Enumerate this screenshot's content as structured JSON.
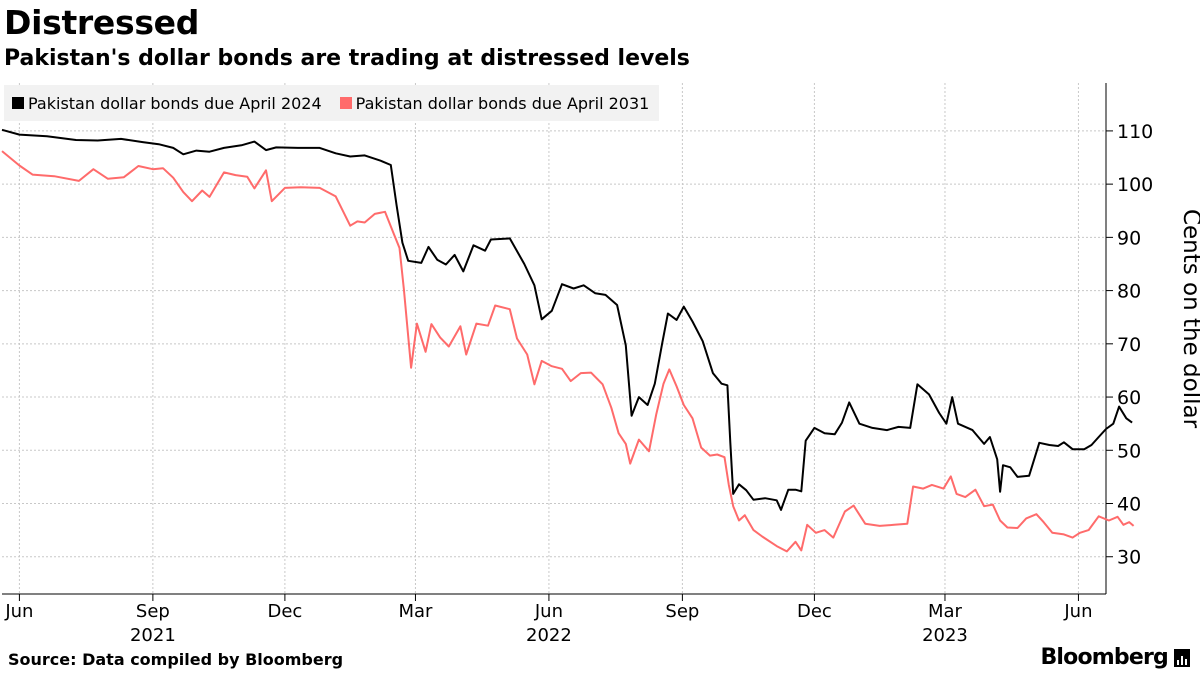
{
  "header": {
    "title": "Distressed",
    "subtitle": "Pakistan's dollar bonds are trading at distressed levels"
  },
  "footer": {
    "source": "Source: Data compiled by Bloomberg",
    "brand": "Bloomberg"
  },
  "colors": {
    "series_2024": "#000000",
    "series_2031": "#ff6b6b",
    "grid": "#c8c8c8",
    "legend_bg": "#f2f2f2"
  },
  "chart_data": {
    "type": "line",
    "title": "Distressed",
    "subtitle": "Pakistan's dollar bonds are trading at distressed levels",
    "ylabel": "Cents on the dollar",
    "ylim": [
      23,
      119
    ],
    "yticks": [
      30,
      40,
      50,
      60,
      70,
      80,
      90,
      100,
      110
    ],
    "xlim": [
      "2021-05-20",
      "2023-06-20"
    ],
    "xticks": [
      {
        "date": "2021-06-01",
        "label": "Jun",
        "year": ""
      },
      {
        "date": "2021-09-01",
        "label": "Sep",
        "year": "2021"
      },
      {
        "date": "2021-12-01",
        "label": "Dec",
        "year": ""
      },
      {
        "date": "2022-03-01",
        "label": "Mar",
        "year": ""
      },
      {
        "date": "2022-06-01",
        "label": "Jun",
        "year": "2022"
      },
      {
        "date": "2022-09-01",
        "label": "Sep",
        "year": ""
      },
      {
        "date": "2022-12-01",
        "label": "Dec",
        "year": ""
      },
      {
        "date": "2023-03-01",
        "label": "Mar",
        "year": "2023"
      },
      {
        "date": "2023-06-01",
        "label": "Jun",
        "year": ""
      }
    ],
    "legend_position": "top-left",
    "series": [
      {
        "name": "Pakistan dollar bonds due April 2024",
        "color": "#000000",
        "points": [
          [
            "2021-05-20",
            110.2
          ],
          [
            "2021-06-01",
            109.3
          ],
          [
            "2021-06-20",
            109.0
          ],
          [
            "2021-07-10",
            108.3
          ],
          [
            "2021-07-25",
            108.2
          ],
          [
            "2021-08-10",
            108.5
          ],
          [
            "2021-08-25",
            107.9
          ],
          [
            "2021-09-05",
            107.5
          ],
          [
            "2021-09-15",
            106.8
          ],
          [
            "2021-09-22",
            105.6
          ],
          [
            "2021-10-01",
            106.3
          ],
          [
            "2021-10-10",
            106.1
          ],
          [
            "2021-10-20",
            106.8
          ],
          [
            "2021-11-01",
            107.3
          ],
          [
            "2021-11-10",
            108.0
          ],
          [
            "2021-11-18",
            106.4
          ],
          [
            "2021-11-25",
            106.9
          ],
          [
            "2021-12-10",
            106.8
          ],
          [
            "2021-12-25",
            106.8
          ],
          [
            "2022-01-05",
            105.8
          ],
          [
            "2022-01-15",
            105.2
          ],
          [
            "2022-01-25",
            105.4
          ],
          [
            "2022-02-05",
            104.4
          ],
          [
            "2022-02-12",
            103.6
          ],
          [
            "2022-02-16",
            96.0
          ],
          [
            "2022-02-20",
            89.0
          ],
          [
            "2022-02-24",
            85.6
          ],
          [
            "2022-03-05",
            85.2
          ],
          [
            "2022-03-10",
            88.2
          ],
          [
            "2022-03-16",
            85.8
          ],
          [
            "2022-03-22",
            84.9
          ],
          [
            "2022-03-28",
            86.7
          ],
          [
            "2022-04-03",
            83.6
          ],
          [
            "2022-04-10",
            88.5
          ],
          [
            "2022-04-18",
            87.5
          ],
          [
            "2022-04-22",
            89.6
          ],
          [
            "2022-05-05",
            89.8
          ],
          [
            "2022-05-15",
            85.0
          ],
          [
            "2022-05-22",
            81.0
          ],
          [
            "2022-05-27",
            74.6
          ],
          [
            "2022-06-03",
            76.2
          ],
          [
            "2022-06-10",
            81.2
          ],
          [
            "2022-06-18",
            80.4
          ],
          [
            "2022-06-25",
            81.0
          ],
          [
            "2022-07-03",
            79.5
          ],
          [
            "2022-07-10",
            79.2
          ],
          [
            "2022-07-18",
            77.3
          ],
          [
            "2022-07-24",
            69.7
          ],
          [
            "2022-07-28",
            56.5
          ],
          [
            "2022-08-02",
            60.0
          ],
          [
            "2022-08-08",
            58.5
          ],
          [
            "2022-08-13",
            62.5
          ],
          [
            "2022-08-18",
            70.0
          ],
          [
            "2022-08-22",
            75.7
          ],
          [
            "2022-08-28",
            74.5
          ],
          [
            "2022-09-02",
            77.0
          ],
          [
            "2022-09-08",
            74.2
          ],
          [
            "2022-09-15",
            70.5
          ],
          [
            "2022-09-22",
            64.5
          ],
          [
            "2022-09-28",
            62.5
          ],
          [
            "2022-10-02",
            62.2
          ],
          [
            "2022-10-04",
            51.5
          ],
          [
            "2022-10-06",
            41.8
          ],
          [
            "2022-10-10",
            43.6
          ],
          [
            "2022-10-15",
            42.5
          ],
          [
            "2022-10-20",
            40.7
          ],
          [
            "2022-10-28",
            41.0
          ],
          [
            "2022-11-05",
            40.6
          ],
          [
            "2022-11-08",
            38.8
          ],
          [
            "2022-11-13",
            42.6
          ],
          [
            "2022-11-18",
            42.6
          ],
          [
            "2022-11-22",
            42.3
          ],
          [
            "2022-11-25",
            51.8
          ],
          [
            "2022-12-01",
            54.2
          ],
          [
            "2022-12-08",
            53.2
          ],
          [
            "2022-12-15",
            53.0
          ],
          [
            "2022-12-20",
            55.2
          ],
          [
            "2022-12-25",
            59.0
          ],
          [
            "2023-01-01",
            55.0
          ],
          [
            "2023-01-10",
            54.2
          ],
          [
            "2023-01-20",
            53.8
          ],
          [
            "2023-01-28",
            54.4
          ],
          [
            "2023-02-05",
            54.2
          ],
          [
            "2023-02-10",
            62.4
          ],
          [
            "2023-02-18",
            60.5
          ],
          [
            "2023-02-25",
            57.0
          ],
          [
            "2023-03-02",
            55.0
          ],
          [
            "2023-03-06",
            60.0
          ],
          [
            "2023-03-10",
            55.0
          ],
          [
            "2023-03-20",
            53.8
          ],
          [
            "2023-03-28",
            51.2
          ],
          [
            "2023-04-01",
            52.5
          ],
          [
            "2023-04-06",
            48.3
          ],
          [
            "2023-04-08",
            42.2
          ],
          [
            "2023-04-10",
            47.2
          ],
          [
            "2023-04-15",
            46.8
          ],
          [
            "2023-04-20",
            45.0
          ],
          [
            "2023-04-28",
            45.2
          ],
          [
            "2023-05-05",
            51.4
          ],
          [
            "2023-05-12",
            51.0
          ],
          [
            "2023-05-18",
            50.8
          ],
          [
            "2023-05-22",
            51.5
          ],
          [
            "2023-05-28",
            50.2
          ],
          [
            "2023-06-05",
            50.2
          ],
          [
            "2023-06-10",
            51.0
          ],
          [
            "2023-06-15",
            52.5
          ],
          [
            "2023-06-20",
            54.0
          ],
          [
            "2023-06-25",
            55.0
          ],
          [
            "2023-06-29",
            58.2
          ],
          [
            "2023-07-04",
            56.0
          ],
          [
            "2023-07-08",
            55.2
          ]
        ]
      },
      {
        "name": "Pakistan dollar bonds due April 2031",
        "color": "#ff6b6b",
        "points": [
          [
            "2021-05-20",
            106.2
          ],
          [
            "2021-06-01",
            103.5
          ],
          [
            "2021-06-10",
            101.8
          ],
          [
            "2021-06-25",
            101.5
          ],
          [
            "2021-07-12",
            100.6
          ],
          [
            "2021-07-22",
            102.8
          ],
          [
            "2021-08-01",
            101.0
          ],
          [
            "2021-08-12",
            101.3
          ],
          [
            "2021-08-22",
            103.4
          ],
          [
            "2021-09-01",
            102.8
          ],
          [
            "2021-09-08",
            103.0
          ],
          [
            "2021-09-15",
            101.2
          ],
          [
            "2021-09-22",
            98.5
          ],
          [
            "2021-09-28",
            96.8
          ],
          [
            "2021-10-05",
            98.8
          ],
          [
            "2021-10-10",
            97.6
          ],
          [
            "2021-10-20",
            102.2
          ],
          [
            "2021-10-28",
            101.7
          ],
          [
            "2021-11-05",
            101.4
          ],
          [
            "2021-11-10",
            99.2
          ],
          [
            "2021-11-18",
            102.6
          ],
          [
            "2021-11-22",
            96.8
          ],
          [
            "2021-12-01",
            99.3
          ],
          [
            "2021-12-12",
            99.4
          ],
          [
            "2021-12-25",
            99.3
          ],
          [
            "2022-01-05",
            97.7
          ],
          [
            "2022-01-15",
            92.2
          ],
          [
            "2022-01-20",
            93.0
          ],
          [
            "2022-01-25",
            92.8
          ],
          [
            "2022-02-01",
            94.4
          ],
          [
            "2022-02-08",
            94.8
          ],
          [
            "2022-02-14",
            90.7
          ],
          [
            "2022-02-18",
            88.0
          ],
          [
            "2022-02-21",
            80.2
          ],
          [
            "2022-02-26",
            65.5
          ],
          [
            "2022-03-02",
            73.8
          ],
          [
            "2022-03-08",
            68.5
          ],
          [
            "2022-03-12",
            73.7
          ],
          [
            "2022-03-18",
            71.2
          ],
          [
            "2022-03-24",
            69.5
          ],
          [
            "2022-04-01",
            73.3
          ],
          [
            "2022-04-05",
            68.0
          ],
          [
            "2022-04-12",
            73.8
          ],
          [
            "2022-04-20",
            73.4
          ],
          [
            "2022-04-25",
            77.2
          ],
          [
            "2022-05-05",
            76.5
          ],
          [
            "2022-05-10",
            71.0
          ],
          [
            "2022-05-17",
            68.0
          ],
          [
            "2022-05-22",
            62.4
          ],
          [
            "2022-05-27",
            66.8
          ],
          [
            "2022-06-03",
            65.8
          ],
          [
            "2022-06-10",
            65.3
          ],
          [
            "2022-06-16",
            63.0
          ],
          [
            "2022-06-23",
            64.5
          ],
          [
            "2022-06-30",
            64.6
          ],
          [
            "2022-07-08",
            62.4
          ],
          [
            "2022-07-14",
            58.0
          ],
          [
            "2022-07-19",
            53.2
          ],
          [
            "2022-07-24",
            51.2
          ],
          [
            "2022-07-27",
            47.5
          ],
          [
            "2022-08-02",
            52.0
          ],
          [
            "2022-08-09",
            49.8
          ],
          [
            "2022-08-14",
            56.8
          ],
          [
            "2022-08-19",
            62.5
          ],
          [
            "2022-08-23",
            65.2
          ],
          [
            "2022-08-28",
            62.0
          ],
          [
            "2022-09-02",
            58.5
          ],
          [
            "2022-09-08",
            56.0
          ],
          [
            "2022-09-14",
            50.5
          ],
          [
            "2022-09-20",
            49.0
          ],
          [
            "2022-09-25",
            49.2
          ],
          [
            "2022-09-30",
            48.7
          ],
          [
            "2022-10-03",
            43.5
          ],
          [
            "2022-10-06",
            39.5
          ],
          [
            "2022-10-10",
            36.8
          ],
          [
            "2022-10-14",
            37.8
          ],
          [
            "2022-10-20",
            35.0
          ],
          [
            "2022-10-26",
            33.8
          ],
          [
            "2022-11-05",
            32.0
          ],
          [
            "2022-11-12",
            31.0
          ],
          [
            "2022-11-18",
            32.8
          ],
          [
            "2022-11-22",
            31.2
          ],
          [
            "2022-11-26",
            36.0
          ],
          [
            "2022-12-02",
            34.5
          ],
          [
            "2022-12-08",
            35.0
          ],
          [
            "2022-12-14",
            33.6
          ],
          [
            "2022-12-22",
            38.5
          ],
          [
            "2022-12-28",
            39.6
          ],
          [
            "2023-01-05",
            36.2
          ],
          [
            "2023-01-15",
            35.8
          ],
          [
            "2023-01-25",
            36.0
          ],
          [
            "2023-02-03",
            36.2
          ],
          [
            "2023-02-07",
            43.2
          ],
          [
            "2023-02-14",
            42.8
          ],
          [
            "2023-02-20",
            43.5
          ],
          [
            "2023-02-28",
            42.8
          ],
          [
            "2023-03-05",
            45.1
          ],
          [
            "2023-03-09",
            41.8
          ],
          [
            "2023-03-15",
            41.2
          ],
          [
            "2023-03-22",
            42.6
          ],
          [
            "2023-03-28",
            39.5
          ],
          [
            "2023-04-03",
            39.8
          ],
          [
            "2023-04-08",
            36.8
          ],
          [
            "2023-04-13",
            35.5
          ],
          [
            "2023-04-20",
            35.4
          ],
          [
            "2023-04-26",
            37.2
          ],
          [
            "2023-05-03",
            38.0
          ],
          [
            "2023-05-08",
            36.5
          ],
          [
            "2023-05-14",
            34.5
          ],
          [
            "2023-05-22",
            34.2
          ],
          [
            "2023-05-28",
            33.6
          ],
          [
            "2023-06-02",
            34.5
          ],
          [
            "2023-06-08",
            35.0
          ],
          [
            "2023-06-15",
            37.6
          ],
          [
            "2023-06-22",
            36.8
          ],
          [
            "2023-06-28",
            37.5
          ],
          [
            "2023-07-02",
            36.0
          ],
          [
            "2023-07-06",
            36.5
          ],
          [
            "2023-07-09",
            35.8
          ]
        ]
      }
    ]
  }
}
